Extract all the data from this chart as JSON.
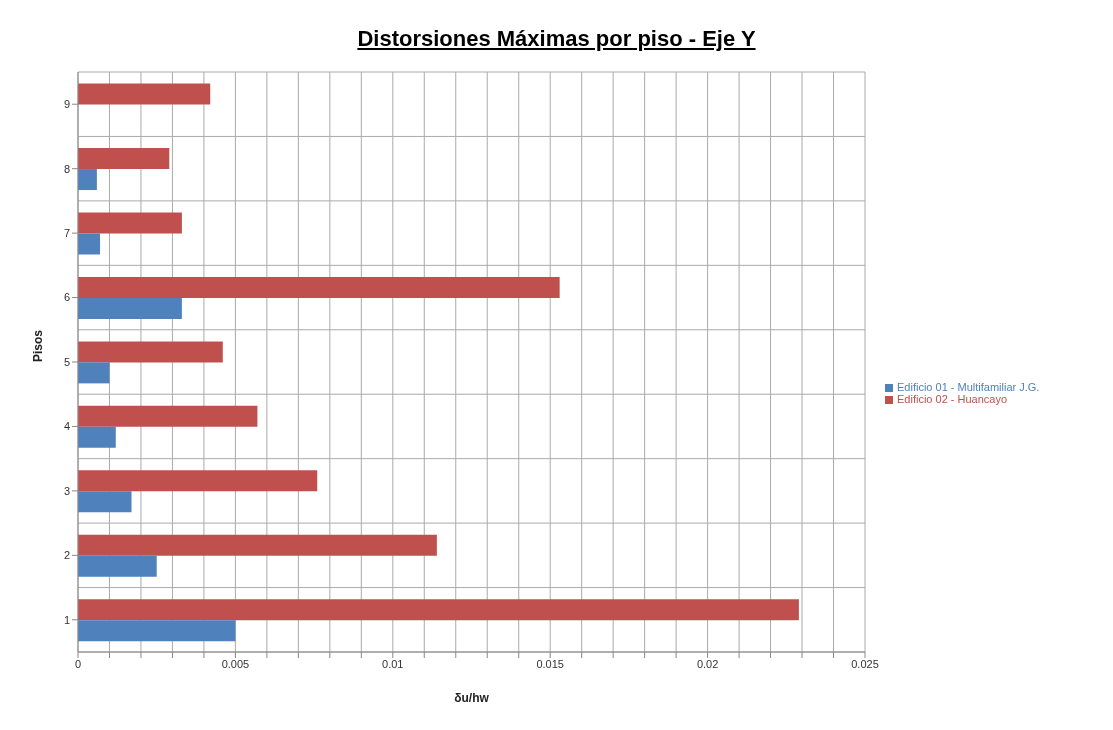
{
  "chart_data": {
    "type": "bar",
    "orientation": "horizontal",
    "title": "Distorsiones Máximas por piso - Eje Y",
    "xlabel": "δu/hw",
    "ylabel": "Pisos",
    "categories": [
      "9",
      "8",
      "7",
      "6",
      "5",
      "4",
      "3",
      "2",
      "1"
    ],
    "series": [
      {
        "name": "Edificio 02 - Huancayo",
        "color": "#c0504d",
        "values": [
          0.0042,
          0.0029,
          0.0033,
          0.0153,
          0.0046,
          0.0057,
          0.0076,
          0.0114,
          0.0229
        ]
      },
      {
        "name": "Edificio 01 - Multifamiliar J.G.",
        "color": "#4f81bd",
        "values": [
          null,
          0.0006,
          0.0007,
          0.0033,
          0.001,
          0.0012,
          0.0017,
          0.0025,
          0.005
        ]
      }
    ],
    "xlim": [
      0,
      0.025
    ],
    "xticks": [
      0,
      {
        "value": 0.001,
        "label": null
      },
      {
        "value": 0.002,
        "label": null
      },
      {
        "value": 0.003,
        "label": null
      },
      {
        "value": 0.004,
        "label": null
      },
      0.005,
      {
        "value": 0.006,
        "label": null
      },
      {
        "value": 0.007,
        "label": null
      },
      {
        "value": 0.008,
        "label": null
      },
      {
        "value": 0.009,
        "label": null
      },
      0.01,
      {
        "value": 0.011,
        "label": null
      },
      {
        "value": 0.012,
        "label": null
      },
      {
        "value": 0.013,
        "label": null
      },
      {
        "value": 0.014,
        "label": null
      },
      0.015,
      {
        "value": 0.016,
        "label": null
      },
      {
        "value": 0.017,
        "label": null
      },
      {
        "value": 0.018,
        "label": null
      },
      {
        "value": 0.019,
        "label": null
      },
      0.02,
      {
        "value": 0.021,
        "label": null
      },
      {
        "value": 0.022,
        "label": null
      },
      {
        "value": 0.023,
        "label": null
      },
      {
        "value": 0.024,
        "label": null
      },
      0.025
    ],
    "grid": true,
    "legend": "right"
  }
}
